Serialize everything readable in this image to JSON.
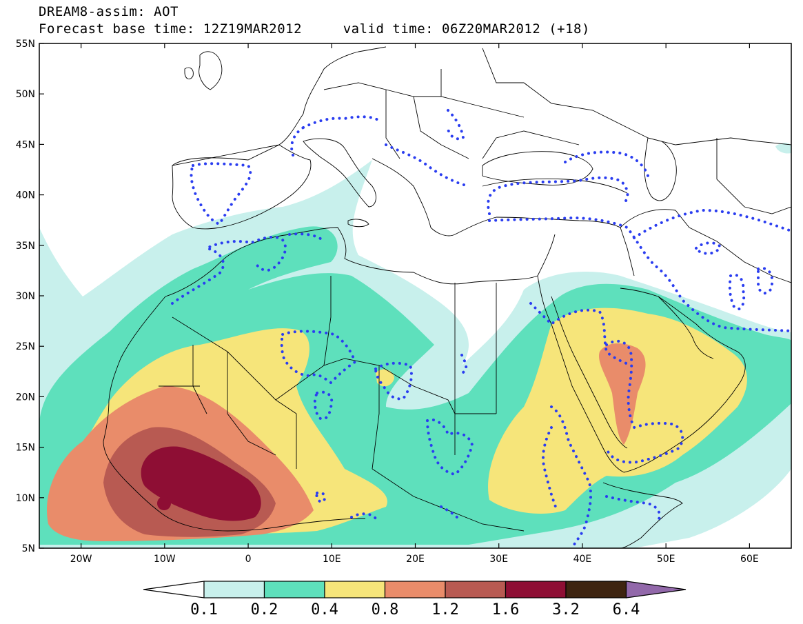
{
  "title": {
    "line1": "DREAM8-assim: AOT",
    "line2": "Forecast base time: 12Z19MAR2012     valid time: 06Z20MAR2012 (+18)"
  },
  "axes": {
    "lat_labels": [
      "55N",
      "50N",
      "45N",
      "40N",
      "35N",
      "30N",
      "25N",
      "20N",
      "15N",
      "10N",
      "5N"
    ],
    "lon_labels": [
      "20W",
      "10W",
      "0",
      "10E",
      "20E",
      "30E",
      "40E",
      "50E",
      "60E"
    ]
  },
  "legend": {
    "levels": [
      "0.1",
      "0.2",
      "0.4",
      "0.8",
      "1.2",
      "1.6",
      "3.2",
      "6.4"
    ],
    "colors": [
      "#c8f0ec",
      "#5ee0bc",
      "#f6e57a",
      "#e98c6a",
      "#b85a52",
      "#8e0e34",
      "#3e2410",
      "#9268aa"
    ]
  },
  "map_colors": {
    "light_cyan": "#c8f0ec",
    "turquoise": "#5ee0bc",
    "yellow": "#f6e57a",
    "salmon": "#e98c6a",
    "brick": "#b85a52",
    "maroon": "#8e0e34",
    "dotted_contour": "#2a3df0"
  }
}
